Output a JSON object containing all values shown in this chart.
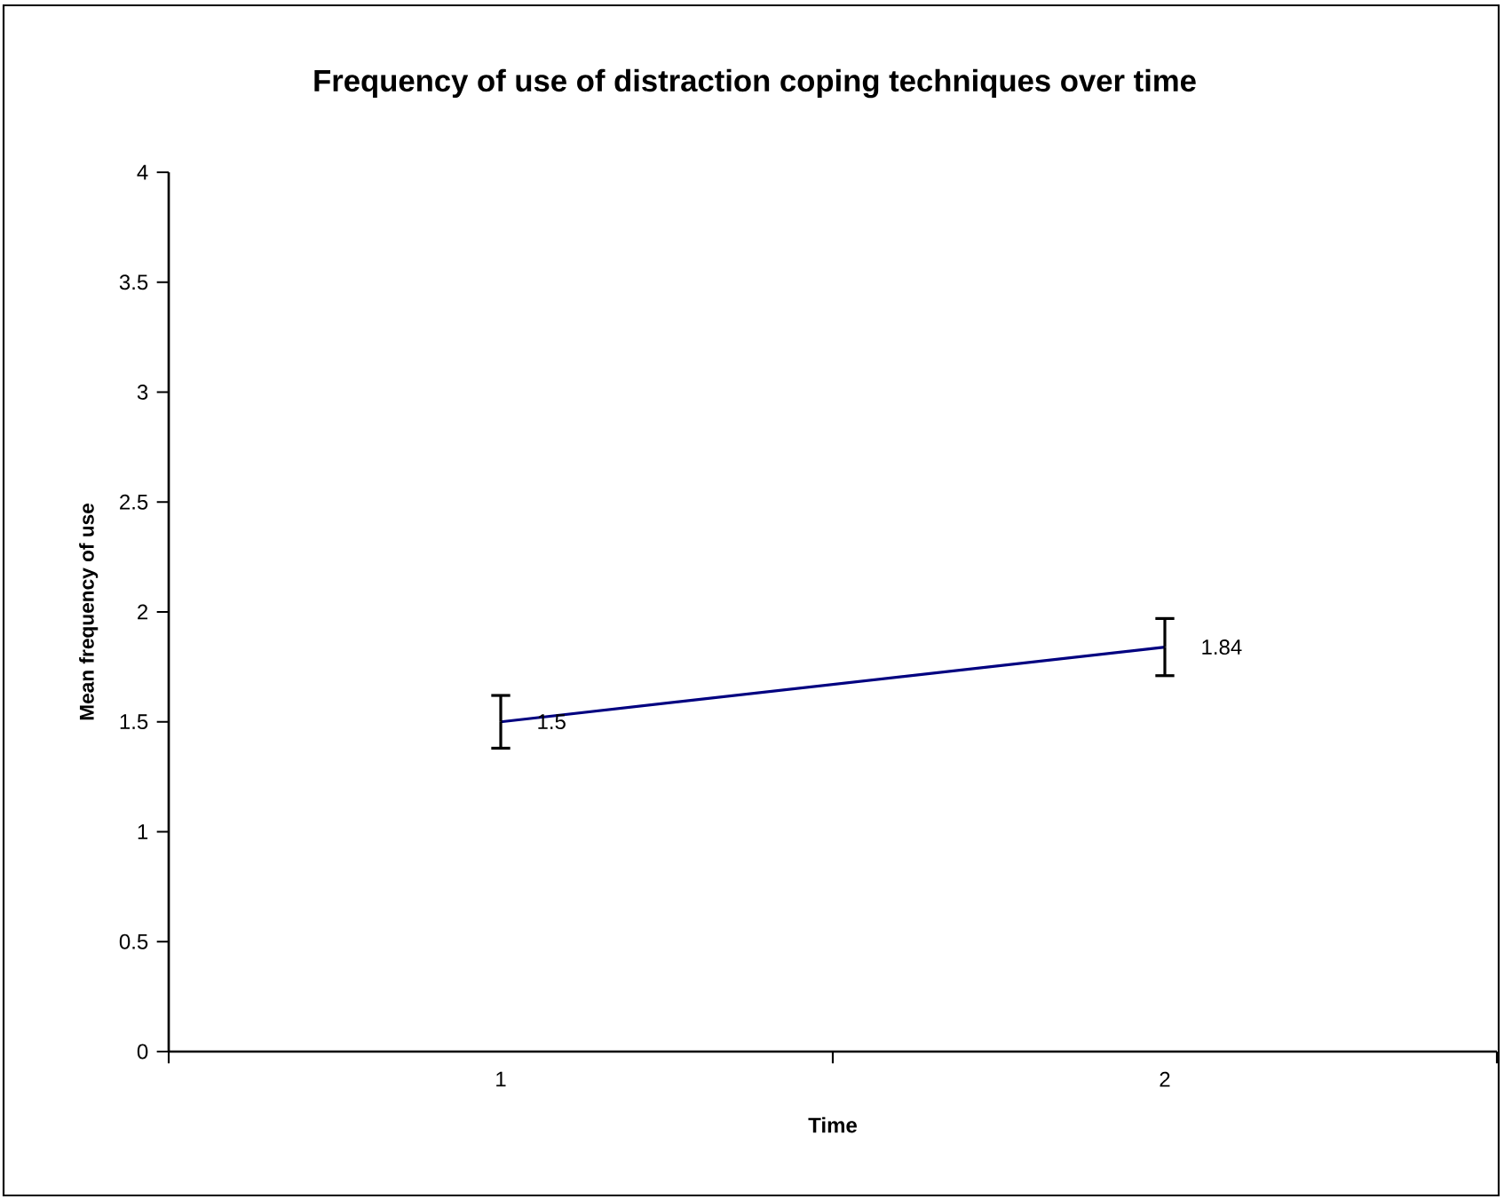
{
  "chart_data": {
    "type": "line",
    "title": "Frequency of use of distraction coping techniques over time",
    "xlabel": "Time",
    "ylabel": "Mean frequency of use",
    "categories": [
      "1",
      "2"
    ],
    "series": [
      {
        "color": "#000080",
        "values": [
          1.5,
          1.84
        ],
        "errors": [
          0.12,
          0.13
        ]
      }
    ],
    "ylim": [
      0,
      4
    ],
    "yticks": [
      0,
      0.5,
      1,
      1.5,
      2,
      2.5,
      3,
      3.5,
      4
    ],
    "data_labels": true,
    "grid": false,
    "marker": "none",
    "line_style": "solid"
  }
}
